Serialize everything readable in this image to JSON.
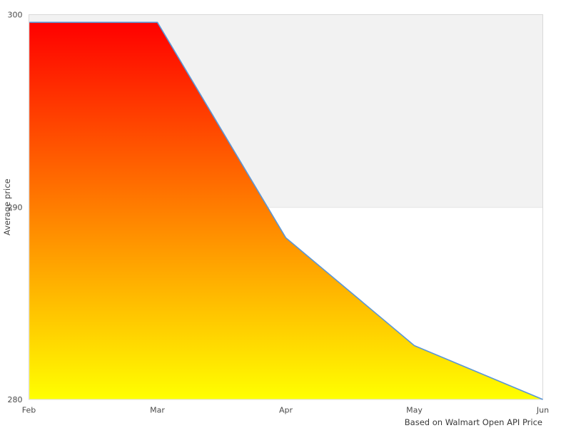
{
  "chart_data": {
    "type": "area",
    "categories": [
      "Feb",
      "Mar",
      "Apr",
      "May",
      "Jun"
    ],
    "values": [
      299.6,
      299.6,
      288.4,
      282.8,
      280.0
    ],
    "title": "",
    "xlabel": "",
    "ylabel": "Average price",
    "caption": "Based on Walmart Open API Price",
    "ylim": [
      280,
      300
    ],
    "yticks": [
      280,
      290,
      300
    ],
    "grid": "horizontal-band",
    "legend": "none",
    "colors": {
      "line": "#5a96d7",
      "area_gradient_top": "#ff0000",
      "area_gradient_bottom": "#ffff00",
      "band_fill": "#f2f2f2",
      "band_edge": "#e2e2e2",
      "plot_border": "#d9d9d9",
      "background": "#ffffff",
      "tick_text": "#4a4a4a",
      "caption_text": "#383838"
    },
    "band": {
      "from": 290,
      "to": 300
    }
  }
}
